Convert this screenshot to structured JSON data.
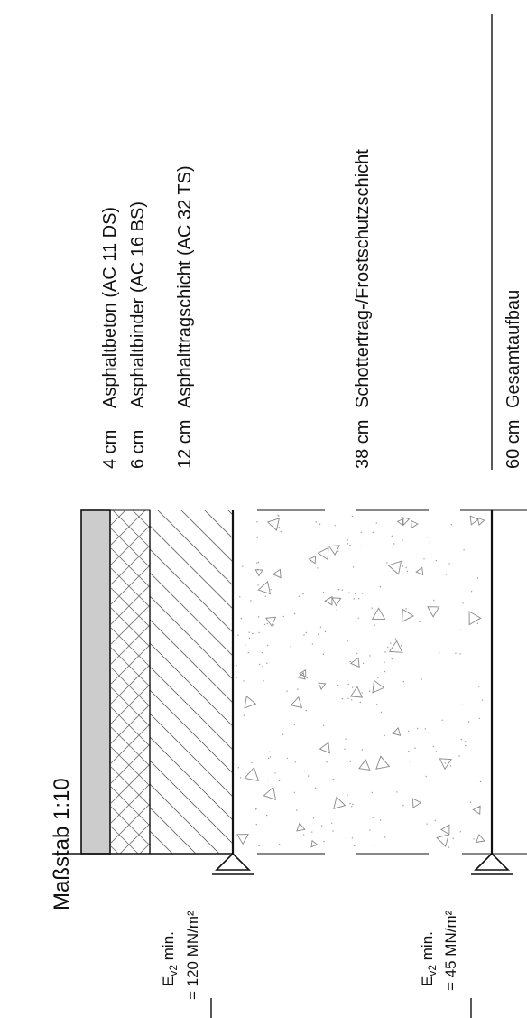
{
  "scale_label": "Maßstab 1:10",
  "layers": [
    {
      "thickness": "4 cm",
      "name": "Asphaltbeton (AC 11 DS)"
    },
    {
      "thickness": "6 cm",
      "name": "Asphaltbinder (AC 16 BS)"
    },
    {
      "thickness": "12 cm",
      "name": "Asphalttragschicht (AC 32 TS)"
    },
    {
      "thickness": "38 cm",
      "name": "Schottertrag-/Frostschutzschicht"
    }
  ],
  "total": {
    "thickness": "60 cm",
    "name": "Gesamtaufbau"
  },
  "ev2_upper": {
    "line1": "E",
    "sub": "v2",
    "line1_rest": " min.",
    "line2": "= 120 MN/m²"
  },
  "ev2_lower": {
    "line1": "E",
    "sub": "v2",
    "line1_rest": " min.",
    "line2": "= 45 MN/m²"
  }
}
